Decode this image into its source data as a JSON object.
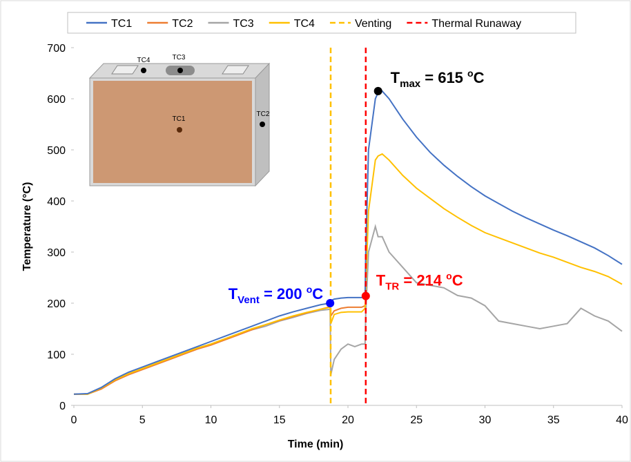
{
  "chart_data": {
    "type": "line",
    "x_label": "Time (min)",
    "y_label": "Temperature (°C)",
    "xlim": [
      0,
      40
    ],
    "xticks": [
      0,
      5,
      10,
      15,
      20,
      25,
      30,
      35,
      40
    ],
    "ylim": [
      0,
      700
    ],
    "yticks": [
      0,
      100,
      200,
      300,
      400,
      500,
      600,
      700
    ],
    "legend": "top",
    "x": [
      0,
      1,
      2,
      3,
      4,
      5,
      6,
      7,
      8,
      9,
      10,
      11,
      12,
      13,
      14,
      15,
      16,
      17,
      18,
      18.7,
      18.75,
      19,
      19.5,
      20,
      20.5,
      21,
      21.25,
      21.3,
      21.5,
      22,
      22.2,
      22.5,
      23,
      24,
      25,
      26,
      27,
      28,
      29,
      30,
      31,
      32,
      33,
      34,
      35,
      36,
      37,
      38,
      39,
      40
    ],
    "series": [
      {
        "name": "TC1",
        "color": "#4472c4",
        "values": [
          22,
          23,
          35,
          52,
          65,
          75,
          85,
          95,
          105,
          115,
          125,
          135,
          145,
          155,
          165,
          175,
          183,
          190,
          197,
          200,
          205,
          208,
          210,
          211,
          211,
          211,
          214,
          300,
          500,
          600,
          612,
          615,
          600,
          560,
          525,
          495,
          470,
          448,
          428,
          410,
          395,
          380,
          367,
          355,
          343,
          332,
          320,
          308,
          293,
          276
        ]
      },
      {
        "name": "TC2",
        "color": "#ed7d31",
        "values": [
          22,
          22,
          32,
          48,
          60,
          70,
          80,
          90,
          100,
          110,
          118,
          128,
          138,
          148,
          158,
          166,
          174,
          181,
          188,
          193,
          175,
          185,
          190,
          192,
          192,
          192,
          195,
          null,
          null,
          null,
          null,
          null,
          null,
          null,
          null,
          null,
          null,
          null,
          null,
          null,
          null,
          null,
          null,
          null,
          null,
          null,
          null,
          null,
          null,
          null
        ]
      },
      {
        "name": "TC3",
        "color": "#a5a5a5",
        "values": [
          22,
          22,
          33,
          50,
          62,
          72,
          82,
          92,
          102,
          112,
          120,
          130,
          140,
          148,
          155,
          165,
          172,
          180,
          186,
          188,
          60,
          90,
          110,
          120,
          115,
          120,
          120,
          180,
          300,
          350,
          330,
          330,
          300,
          270,
          240,
          235,
          230,
          215,
          210,
          195,
          165,
          160,
          155,
          150,
          155,
          160,
          190,
          175,
          165,
          145
        ]
      },
      {
        "name": "TC4",
        "color": "#ffc000",
        "values": [
          22,
          22,
          34,
          50,
          62,
          72,
          82,
          92,
          102,
          112,
          120,
          130,
          140,
          150,
          158,
          167,
          175,
          182,
          188,
          192,
          160,
          178,
          182,
          183,
          183,
          183,
          190,
          230,
          380,
          480,
          488,
          492,
          480,
          450,
          425,
          405,
          385,
          368,
          352,
          338,
          328,
          318,
          308,
          298,
          290,
          280,
          270,
          262,
          252,
          237
        ]
      }
    ],
    "vlines": [
      {
        "name": "Venting",
        "x": 18.74,
        "color": "#ffc000"
      },
      {
        "name": "Thermal Runaway",
        "x": 21.3,
        "color": "#ff0000"
      }
    ],
    "markers": [
      {
        "x": 18.7,
        "y": 200,
        "color": "#0000ff",
        "label": {
          "main": "T",
          "sub": "Vent",
          "mid": " = 200 ",
          "sup": "o",
          "unit": "C"
        }
      },
      {
        "x": 21.3,
        "y": 214,
        "color": "#ff0000",
        "label": {
          "main": "T",
          "sub": "TR",
          "mid": " = 214 ",
          "sup": "o",
          "unit": "C"
        }
      },
      {
        "x": 22.2,
        "y": 615,
        "color": "#000000",
        "label": {
          "main": "T",
          "sub": "max",
          "mid": " = 615 ",
          "sup": "o",
          "unit": "C"
        }
      }
    ],
    "inset": {
      "labels": [
        "TC4",
        "TC3",
        "TC1",
        "TC2"
      ]
    }
  }
}
